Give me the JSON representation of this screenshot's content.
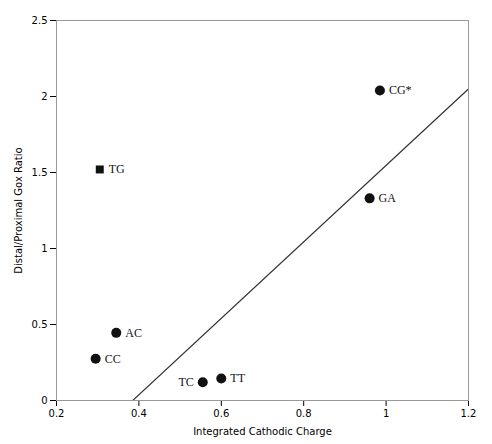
{
  "chart_data": {
    "type": "scatter",
    "xlabel": "Integrated Cathodic Charge",
    "ylabel": "Distal/Proximal Gox Ratio",
    "xlim": [
      0.2,
      1.2
    ],
    "ylim": [
      0.0,
      2.5
    ],
    "xticks": [
      0.2,
      0.4,
      0.6,
      0.8,
      1.0,
      1.2
    ],
    "yticks": [
      0.0,
      0.5,
      1.0,
      1.5,
      2.0,
      2.5
    ],
    "series": [
      {
        "type": "line",
        "color": "#333333",
        "x": [
          0.385,
          1.2
        ],
        "values": [
          0.0,
          2.05
        ]
      },
      {
        "type": "scatter",
        "marker": "circle",
        "color": "#111111",
        "x": [
          0.295,
          0.345,
          0.555,
          0.6,
          0.96,
          0.985
        ],
        "values": [
          0.275,
          0.445,
          0.12,
          0.145,
          1.33,
          2.04
        ],
        "labels": [
          "CC",
          "AC",
          "TC",
          "TT",
          "GA",
          "CG*"
        ]
      },
      {
        "type": "scatter",
        "marker": "square",
        "color": "#111111",
        "x": [
          0.305
        ],
        "values": [
          1.52
        ],
        "labels": [
          "TG"
        ]
      }
    ]
  }
}
